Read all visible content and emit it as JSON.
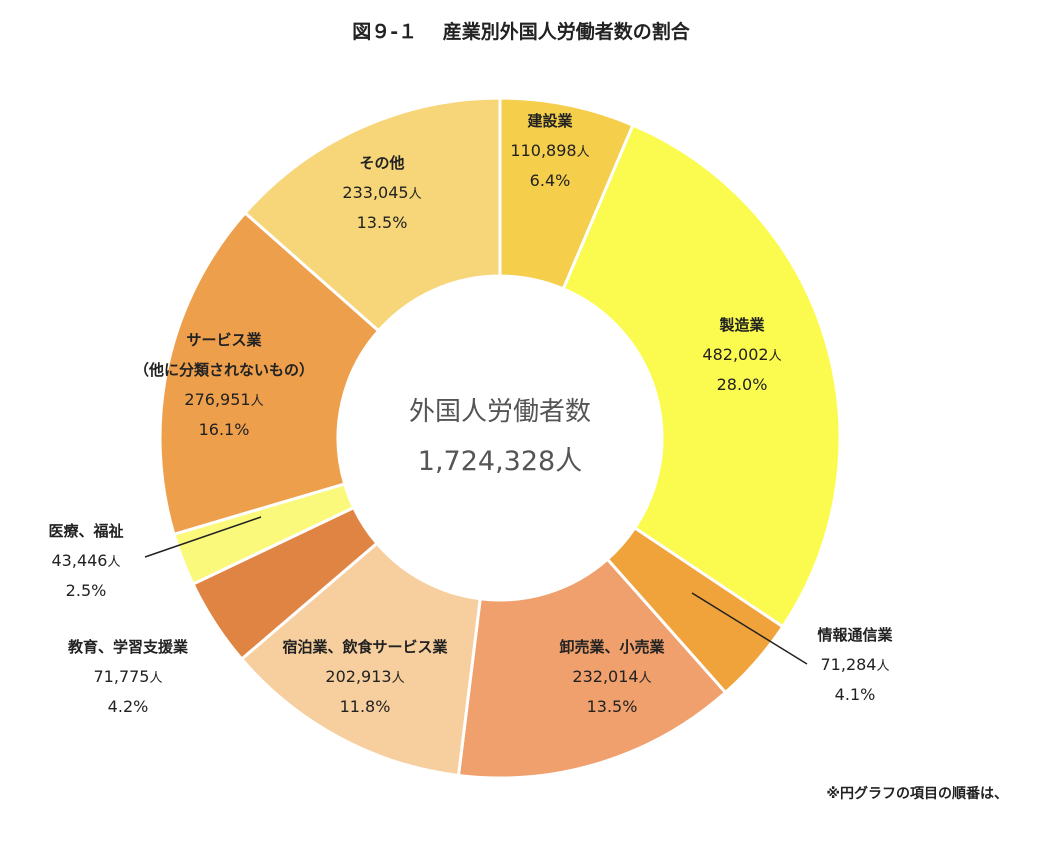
{
  "chart_data": {
    "type": "pie",
    "title": "図９-１　 産業別外国人労働者数の割合",
    "center_label": "外国人労働者数",
    "center_value": "1,724,328人",
    "person_unit": "人",
    "note": "※円グラフの項目の順番は、",
    "slices": [
      {
        "label": "建設業",
        "count": "110,898",
        "value": 6.4,
        "percent": "6.4%",
        "color": "#F5CE4B"
      },
      {
        "label": "製造業",
        "count": "482,002",
        "value": 28.0,
        "percent": "28.0%",
        "color": "#FBFB4F"
      },
      {
        "label": "情報通信業",
        "count": "71,284",
        "value": 4.1,
        "percent": "4.1%",
        "color": "#F0A23B"
      },
      {
        "label": "卸売業、小売業",
        "count": "232,014",
        "value": 13.5,
        "percent": "13.5%",
        "color": "#EFA06C"
      },
      {
        "label": "宿泊業、飲食サービス業",
        "count": "202,913",
        "value": 11.8,
        "percent": "11.8%",
        "color": "#F7CF9E"
      },
      {
        "label": "教育、学習支援業",
        "count": "71,775",
        "value": 4.2,
        "percent": "4.2%",
        "color": "#E08443"
      },
      {
        "label": "医療、福祉",
        "count": "43,446",
        "value": 2.5,
        "percent": "2.5%",
        "color": "#FBF97C"
      },
      {
        "label": "サービス業",
        "sublabel": "（他に分類されないもの）",
        "count": "276,951",
        "value": 16.1,
        "percent": "16.1%",
        "color": "#EE9F4C"
      },
      {
        "label": "その他",
        "count": "233,045",
        "value": 13.5,
        "percent": "13.5%",
        "color": "#F6D679"
      }
    ]
  }
}
